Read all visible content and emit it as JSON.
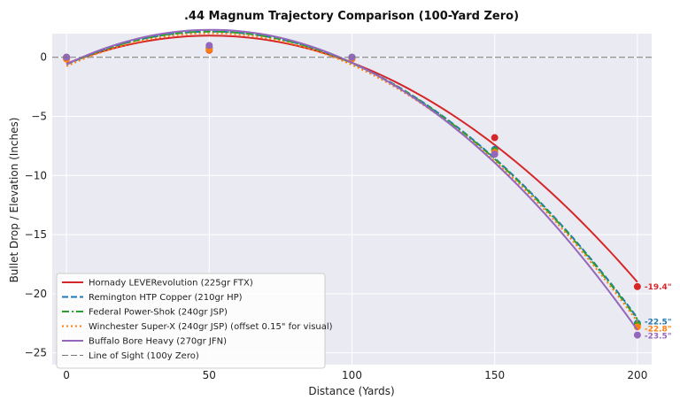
{
  "chart_data": {
    "type": "line",
    "title": ".44 Magnum Trajectory Comparison (100-Yard Zero)",
    "xlabel": "Distance (Yards)",
    "ylabel": "Bullet Drop / Elevation (Inches)",
    "xlim": [
      -5,
      205
    ],
    "ylim": [
      -26,
      2
    ],
    "xticks": [
      0,
      50,
      100,
      150,
      200
    ],
    "yticks": [
      0,
      -5,
      -10,
      -15,
      -20,
      -25
    ],
    "grid": true,
    "background": "#EAEAF2",
    "legend_position": "lower-left",
    "series": [
      {
        "name": "Hornady LEVERevolution (225gr FTX)",
        "color": "#d62728",
        "dash": "solid",
        "x": [
          0,
          50,
          100,
          150,
          200
        ],
        "y": [
          0,
          0.6,
          0,
          -6.8,
          -19.4
        ],
        "end_label": "-19.4\""
      },
      {
        "name": "Remington HTP Copper (210gr HP)",
        "color": "#1f77b4",
        "dash": "dashed",
        "x": [
          0,
          50,
          100,
          150,
          200
        ],
        "y": [
          0,
          0.8,
          0,
          -7.8,
          -22.5
        ],
        "end_label": "-22.5\""
      },
      {
        "name": "Federal Power-Shok (240gr JSP)",
        "color": "#2ca02c",
        "dash": "dashdot",
        "x": [
          0,
          50,
          100,
          150,
          200
        ],
        "y": [
          0,
          0.8,
          0,
          -7.9,
          -22.6
        ],
        "end_label": ""
      },
      {
        "name": "Winchester Super-X (240gr JSP) (offset 0.15\" for visual)",
        "color": "#ff7f0e",
        "dash": "dotted",
        "x": [
          0,
          50,
          100,
          150,
          200
        ],
        "y": [
          -0.15,
          0.65,
          -0.15,
          -8.05,
          -22.8
        ],
        "end_label": "-22.8\""
      },
      {
        "name": "Buffalo Bore Heavy (270gr JFN)",
        "color": "#9467bd",
        "dash": "solid",
        "x": [
          0,
          50,
          100,
          150,
          200
        ],
        "y": [
          0,
          1.0,
          0,
          -8.2,
          -23.5
        ],
        "end_label": "-23.5\""
      },
      {
        "name": "Line of Sight (100y Zero)",
        "color": "#777777",
        "dash": "dashed",
        "x": [
          -5,
          205
        ],
        "y": [
          0,
          0
        ],
        "end_label": ""
      }
    ]
  }
}
